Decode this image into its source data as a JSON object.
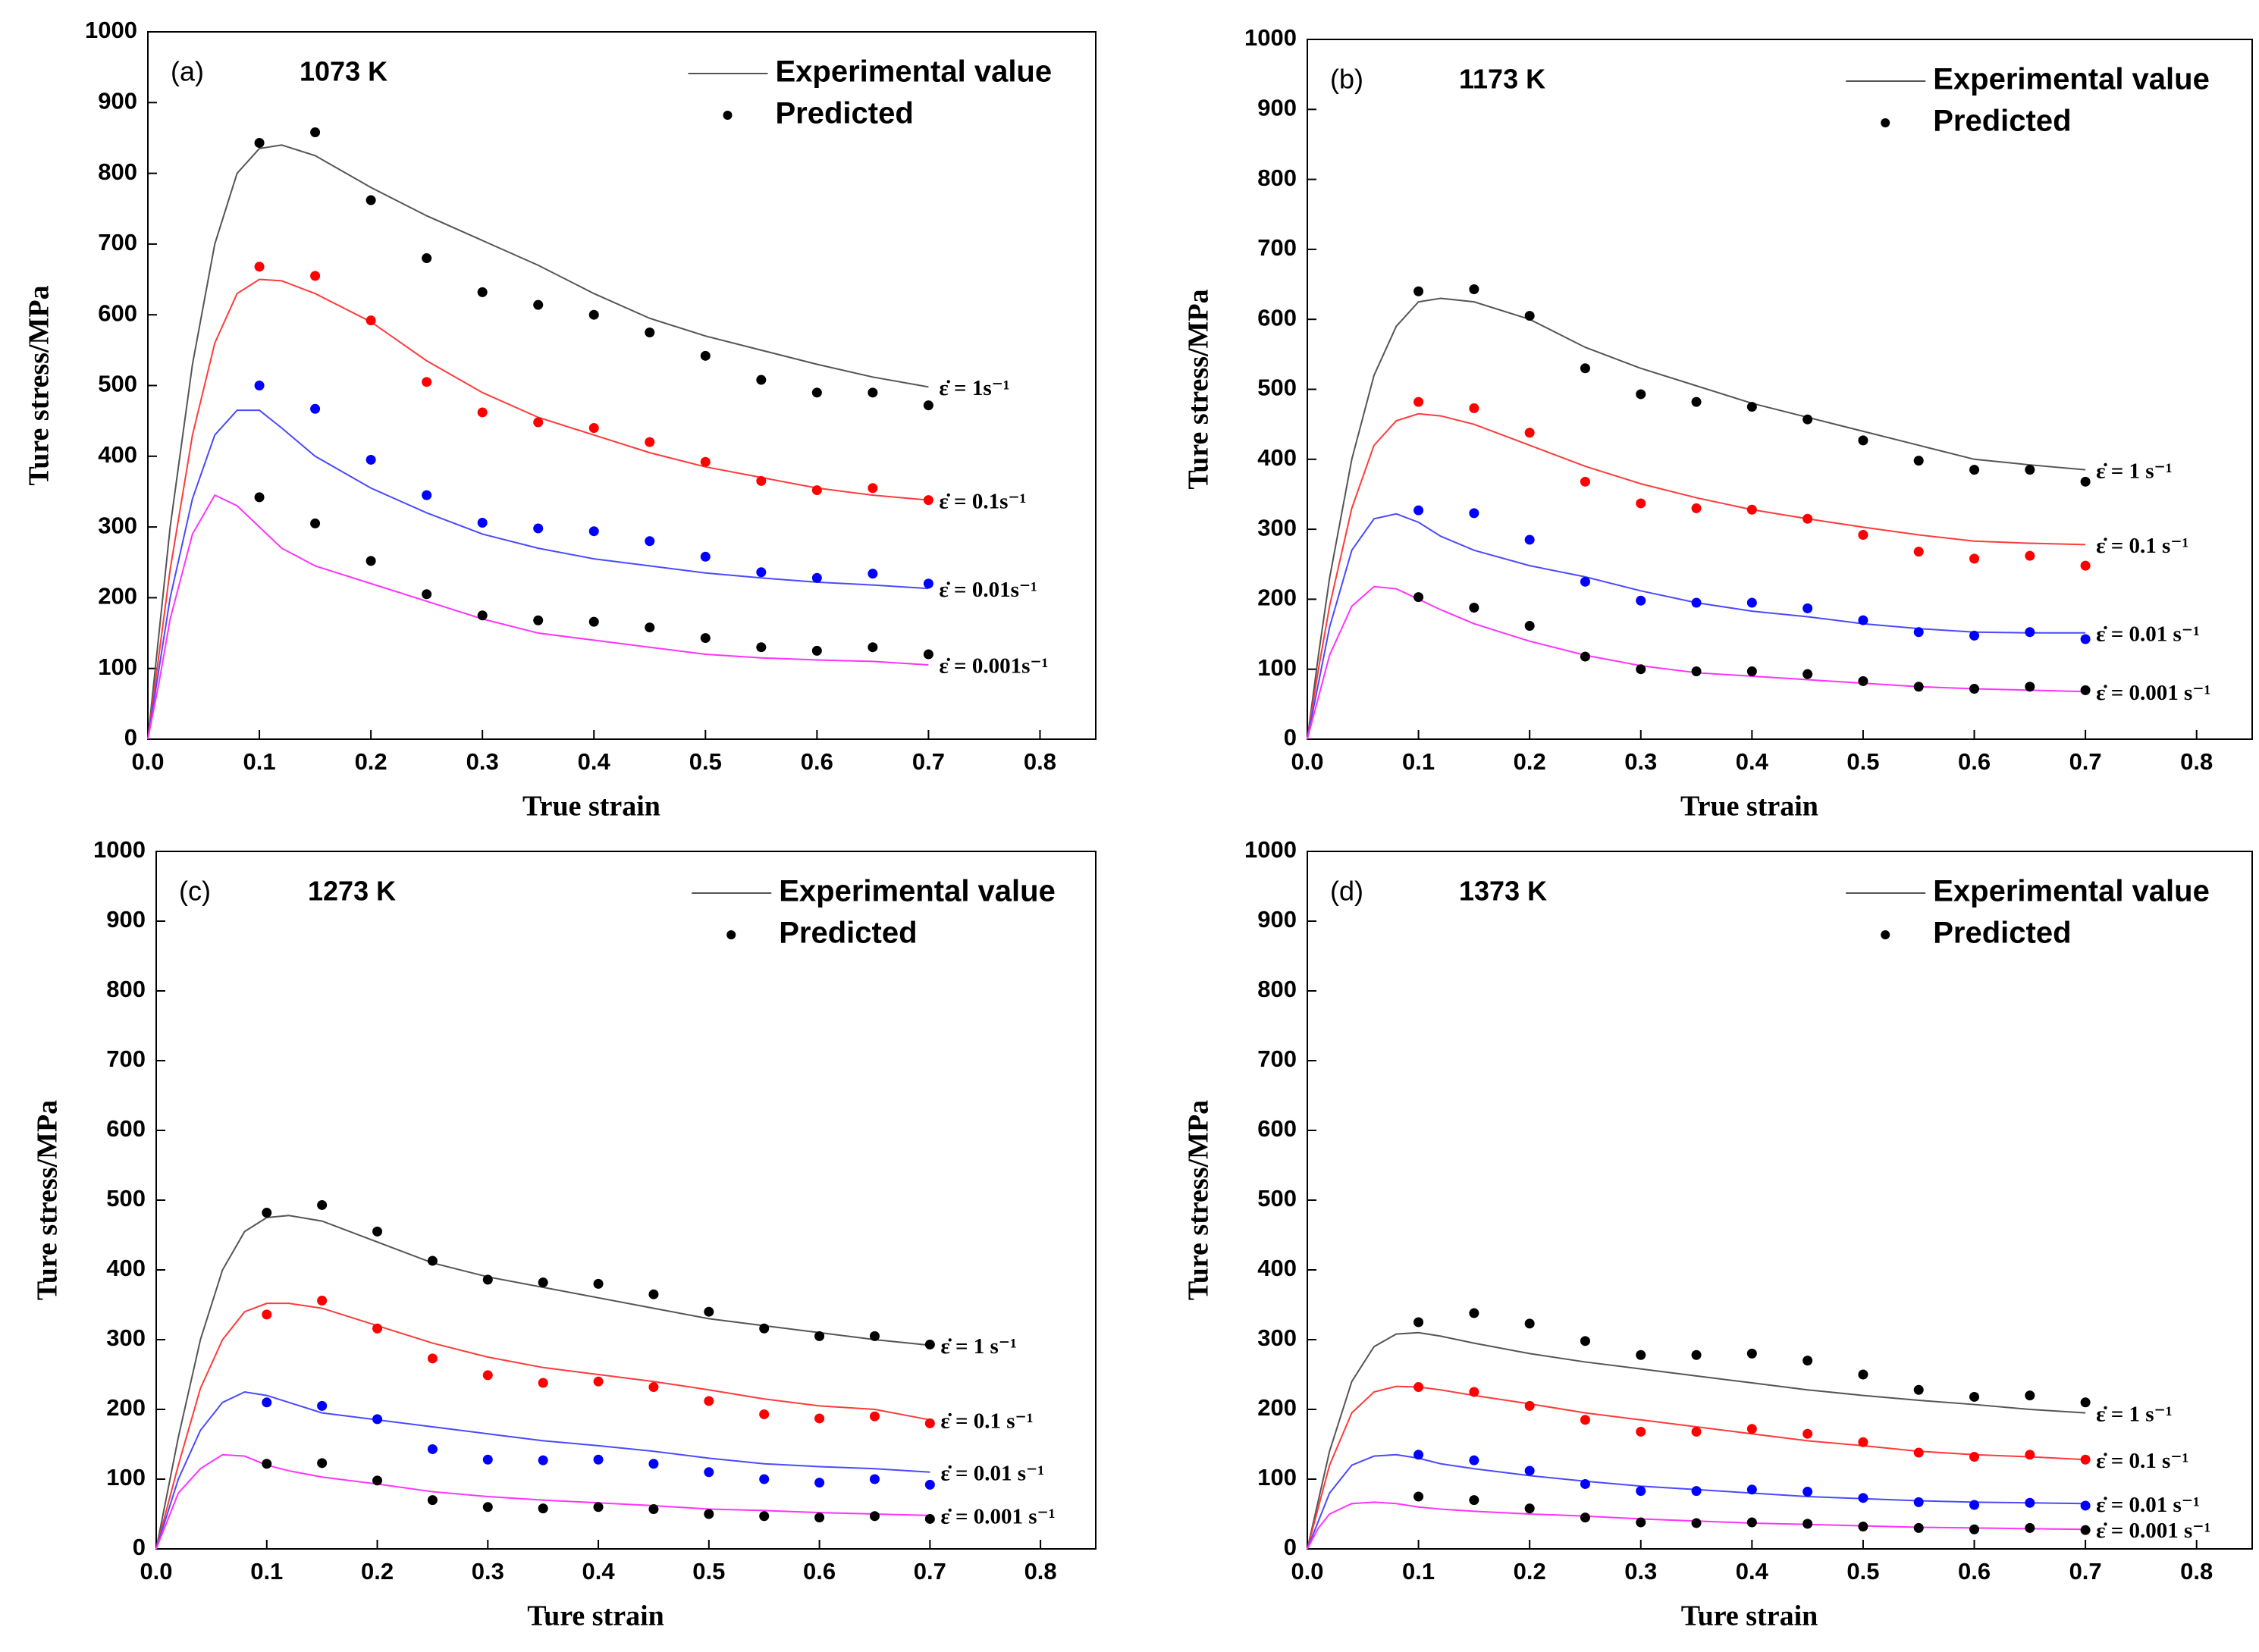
{
  "chart_data": [
    {
      "type": "line",
      "panel": "(a)",
      "temperature": "1073 K",
      "xlabel": "True strain",
      "ylabel": "Ture stress/MPa",
      "legend": {
        "line": "Experimental value",
        "marker": "Predicted"
      },
      "xlim": [
        0,
        0.85
      ],
      "ylim": [
        0,
        1000
      ],
      "xticks": [
        {
          "value": 0,
          "label": "0.0"
        },
        0.1,
        0.2,
        0.3,
        0.4,
        0.5,
        0.6,
        0.7,
        0.8
      ],
      "yticks": [
        0,
        100,
        200,
        300,
        400,
        500,
        600,
        700,
        800,
        900,
        1000
      ],
      "curve_x": [
        0,
        0.01,
        0.02,
        0.04,
        0.06,
        0.08,
        0.1,
        0.12,
        0.15,
        0.2,
        0.25,
        0.3,
        0.35,
        0.4,
        0.45,
        0.5,
        0.55,
        0.6,
        0.65,
        0.7
      ],
      "point_x": [
        0.1,
        0.15,
        0.2,
        0.25,
        0.3,
        0.35,
        0.4,
        0.45,
        0.5,
        0.55,
        0.6,
        0.65,
        0.7
      ],
      "series": [
        {
          "name": "ε̇ = 1s⁻¹",
          "line_color": "#555555",
          "marker_color": "#000000",
          "curve": [
            0,
            150,
            300,
            530,
            700,
            800,
            835,
            840,
            825,
            780,
            740,
            705,
            670,
            630,
            595,
            570,
            550,
            530,
            512,
            498
          ],
          "points": [
            843,
            858,
            762,
            680,
            632,
            614,
            600,
            575,
            542,
            508,
            490,
            490,
            472
          ]
        },
        {
          "name": "ε̇ = 0.1s⁻¹",
          "line_color": "#ff3b3b",
          "marker_color": "#ff0000",
          "curve": [
            0,
            120,
            240,
            430,
            560,
            630,
            650,
            648,
            630,
            590,
            535,
            490,
            455,
            430,
            405,
            385,
            370,
            355,
            345,
            338
          ],
          "points": [
            668,
            655,
            592,
            505,
            462,
            448,
            440,
            420,
            392,
            365,
            352,
            355,
            338
          ]
        },
        {
          "name": "ε̇ = 0.01s⁻¹",
          "line_color": "#4a4aff",
          "marker_color": "#0000ff",
          "curve": [
            0,
            100,
            200,
            340,
            430,
            465,
            465,
            440,
            400,
            355,
            320,
            290,
            270,
            255,
            245,
            235,
            228,
            222,
            218,
            213
          ],
          "points": [
            500,
            467,
            395,
            345,
            306,
            298,
            294,
            280,
            258,
            236,
            228,
            234,
            220
          ]
        },
        {
          "name": "ε̇ = 0.001s⁻¹",
          "line_color": "#ff33ff",
          "marker_color": "#000000",
          "curve": [
            0,
            80,
            170,
            290,
            345,
            330,
            300,
            270,
            245,
            220,
            195,
            170,
            150,
            140,
            130,
            120,
            115,
            112,
            110,
            105
          ],
          "points": [
            342,
            305,
            252,
            205,
            175,
            168,
            166,
            158,
            143,
            130,
            125,
            130,
            120
          ]
        }
      ]
    },
    {
      "type": "line",
      "panel": "(b)",
      "temperature": "1173 K",
      "xlabel": "True strain",
      "ylabel": "Ture stress/MPa",
      "legend": {
        "line": "Experimental value",
        "marker": "Predicted"
      },
      "xlim": [
        0,
        0.85
      ],
      "ylim": [
        0,
        1000
      ],
      "xticks": [
        {
          "value": 0,
          "label": "0.0"
        },
        0.1,
        0.2,
        0.3,
        0.4,
        0.5,
        0.6,
        0.7,
        0.8
      ],
      "yticks": [
        0,
        100,
        200,
        300,
        400,
        500,
        600,
        700,
        800,
        900,
        1000
      ],
      "curve_x": [
        0,
        0.01,
        0.02,
        0.04,
        0.06,
        0.08,
        0.1,
        0.12,
        0.15,
        0.2,
        0.25,
        0.3,
        0.35,
        0.4,
        0.45,
        0.5,
        0.55,
        0.6,
        0.65,
        0.7
      ],
      "point_x": [
        0.1,
        0.15,
        0.2,
        0.25,
        0.3,
        0.35,
        0.4,
        0.45,
        0.5,
        0.55,
        0.6,
        0.65,
        0.7
      ],
      "series": [
        {
          "name": "ε̇ = 1 s⁻¹",
          "line_color": "#555555",
          "marker_color": "#000000",
          "curve": [
            0,
            120,
            230,
            400,
            520,
            590,
            625,
            630,
            625,
            600,
            560,
            530,
            505,
            480,
            460,
            440,
            420,
            400,
            392,
            385
          ],
          "points": [
            640,
            643,
            605,
            530,
            493,
            482,
            475,
            457,
            427,
            398,
            385,
            385,
            368
          ]
        },
        {
          "name": "ε̇ = 0.1 s⁻¹",
          "line_color": "#ff3b3b",
          "marker_color": "#ff0000",
          "curve": [
            0,
            100,
            190,
            330,
            420,
            455,
            465,
            462,
            450,
            420,
            390,
            365,
            345,
            328,
            315,
            303,
            292,
            283,
            280,
            278
          ],
          "points": [
            482,
            473,
            438,
            368,
            337,
            330,
            328,
            315,
            292,
            268,
            258,
            262,
            248
          ]
        },
        {
          "name": "ε̇ = 0.01 s⁻¹",
          "line_color": "#4a4aff",
          "marker_color": "#0000ff",
          "curve": [
            0,
            80,
            160,
            270,
            315,
            322,
            310,
            290,
            270,
            248,
            232,
            212,
            195,
            183,
            175,
            165,
            158,
            153,
            152,
            152
          ],
          "points": [
            327,
            323,
            285,
            225,
            198,
            195,
            195,
            187,
            170,
            153,
            148,
            153,
            143
          ]
        },
        {
          "name": "ε̇ = 0.001 s⁻¹",
          "line_color": "#ff33ff",
          "marker_color": "#000000",
          "curve": [
            0,
            60,
            120,
            190,
            218,
            215,
            200,
            185,
            165,
            140,
            120,
            105,
            95,
            90,
            85,
            80,
            75,
            72,
            70,
            68
          ],
          "points": [
            203,
            188,
            162,
            118,
            100,
            97,
            97,
            93,
            83,
            75,
            72,
            75,
            70
          ]
        }
      ]
    },
    {
      "type": "line",
      "panel": "(c)",
      "temperature": "1273 K",
      "xlabel": "Ture strain",
      "ylabel": "Ture stress/MPa",
      "legend": {
        "line": "Experimental value",
        "marker": "Predicted"
      },
      "xlim": [
        0,
        0.85
      ],
      "ylim": [
        0,
        1000
      ],
      "xticks": [
        {
          "value": 0,
          "label": "0.0"
        },
        0.1,
        0.2,
        0.3,
        0.4,
        0.5,
        0.6,
        0.7,
        0.8
      ],
      "yticks": [
        0,
        100,
        200,
        300,
        400,
        500,
        600,
        700,
        800,
        900,
        1000
      ],
      "curve_x": [
        0,
        0.01,
        0.02,
        0.04,
        0.06,
        0.08,
        0.1,
        0.12,
        0.15,
        0.2,
        0.25,
        0.3,
        0.35,
        0.4,
        0.45,
        0.5,
        0.55,
        0.6,
        0.65,
        0.7
      ],
      "point_x": [
        0.1,
        0.15,
        0.2,
        0.25,
        0.3,
        0.35,
        0.4,
        0.45,
        0.5,
        0.55,
        0.6,
        0.65,
        0.7
      ],
      "series": [
        {
          "name": "ε̇ = 1 s⁻¹",
          "line_color": "#555555",
          "marker_color": "#000000",
          "curve": [
            0,
            80,
            160,
            300,
            400,
            455,
            475,
            478,
            470,
            440,
            410,
            390,
            375,
            360,
            345,
            330,
            320,
            310,
            300,
            292
          ],
          "points": [
            482,
            493,
            455,
            413,
            386,
            382,
            380,
            365,
            340,
            316,
            305,
            305,
            293
          ]
        },
        {
          "name": "ε̇ = 0.1 s⁻¹",
          "line_color": "#ff3b3b",
          "marker_color": "#ff0000",
          "curve": [
            0,
            60,
            120,
            230,
            300,
            340,
            352,
            352,
            345,
            320,
            295,
            275,
            260,
            250,
            240,
            228,
            215,
            205,
            200,
            185
          ],
          "points": [
            336,
            356,
            316,
            273,
            249,
            238,
            240,
            232,
            212,
            193,
            187,
            190,
            180
          ]
        },
        {
          "name": "ε̇ = 0.01 s⁻¹",
          "line_color": "#4a4aff",
          "marker_color": "#0000ff",
          "curve": [
            0,
            50,
            100,
            170,
            210,
            225,
            220,
            210,
            195,
            185,
            175,
            165,
            155,
            148,
            140,
            130,
            122,
            118,
            115,
            110
          ],
          "points": [
            210,
            205,
            186,
            143,
            128,
            127,
            128,
            122,
            110,
            100,
            95,
            100,
            92
          ]
        },
        {
          "name": "ε̇ = 0.001 s⁻¹",
          "line_color": "#ff33ff",
          "marker_color": "#000000",
          "curve": [
            0,
            40,
            80,
            115,
            135,
            133,
            120,
            112,
            103,
            93,
            82,
            75,
            70,
            66,
            62,
            57,
            55,
            52,
            50,
            48
          ],
          "points": [
            122,
            123,
            98,
            70,
            60,
            58,
            60,
            57,
            50,
            47,
            45,
            47,
            43
          ]
        }
      ]
    },
    {
      "type": "line",
      "panel": "(d)",
      "temperature": "1373 K",
      "xlabel": "Ture strain",
      "ylabel": "Ture stress/MPa",
      "legend": {
        "line": "Experimental value",
        "marker": "Predicted"
      },
      "xlim": [
        0,
        0.85
      ],
      "ylim": [
        0,
        1000
      ],
      "xticks": [
        {
          "value": 0,
          "label": "0.0"
        },
        0.1,
        0.2,
        0.3,
        0.4,
        0.5,
        0.6,
        0.7,
        0.8
      ],
      "yticks": [
        0,
        100,
        200,
        300,
        400,
        500,
        600,
        700,
        800,
        900,
        1000
      ],
      "curve_x": [
        0,
        0.01,
        0.02,
        0.04,
        0.06,
        0.08,
        0.1,
        0.12,
        0.15,
        0.2,
        0.25,
        0.3,
        0.35,
        0.4,
        0.45,
        0.5,
        0.55,
        0.6,
        0.65,
        0.7
      ],
      "point_x": [
        0.1,
        0.15,
        0.2,
        0.25,
        0.3,
        0.35,
        0.4,
        0.45,
        0.5,
        0.55,
        0.6,
        0.65,
        0.7
      ],
      "series": [
        {
          "name": "ε̇ = 1 s⁻¹",
          "line_color": "#555555",
          "marker_color": "#000000",
          "curve": [
            0,
            70,
            140,
            240,
            290,
            308,
            310,
            305,
            295,
            280,
            268,
            258,
            248,
            238,
            228,
            220,
            213,
            207,
            200,
            195
          ],
          "points": [
            325,
            338,
            323,
            298,
            278,
            278,
            280,
            270,
            250,
            228,
            218,
            220,
            210
          ]
        },
        {
          "name": "ε̇ = 0.1 s⁻¹",
          "line_color": "#ff3b3b",
          "marker_color": "#ff0000",
          "curve": [
            0,
            60,
            120,
            195,
            225,
            233,
            232,
            228,
            220,
            208,
            195,
            185,
            175,
            165,
            155,
            148,
            140,
            135,
            132,
            128
          ],
          "points": [
            232,
            225,
            205,
            185,
            168,
            168,
            172,
            165,
            153,
            138,
            132,
            135,
            128
          ]
        },
        {
          "name": "ε̇ = 0.01 s⁻¹",
          "line_color": "#4a4aff",
          "marker_color": "#0000ff",
          "curve": [
            0,
            40,
            80,
            120,
            133,
            135,
            130,
            122,
            115,
            105,
            97,
            90,
            85,
            80,
            75,
            72,
            69,
            67,
            66,
            65
          ],
          "points": [
            135,
            127,
            112,
            93,
            83,
            83,
            85,
            82,
            73,
            67,
            63,
            66,
            62
          ]
        },
        {
          "name": "ε̇ = 0.001 s⁻¹",
          "line_color": "#ff33ff",
          "marker_color": "#000000",
          "curve": [
            0,
            30,
            50,
            65,
            67,
            65,
            60,
            57,
            54,
            50,
            47,
            43,
            40,
            37,
            35,
            33,
            31,
            30,
            29,
            28
          ],
          "points": [
            75,
            70,
            58,
            45,
            38,
            37,
            38,
            36,
            32,
            30,
            28,
            30,
            27
          ]
        }
      ]
    }
  ]
}
